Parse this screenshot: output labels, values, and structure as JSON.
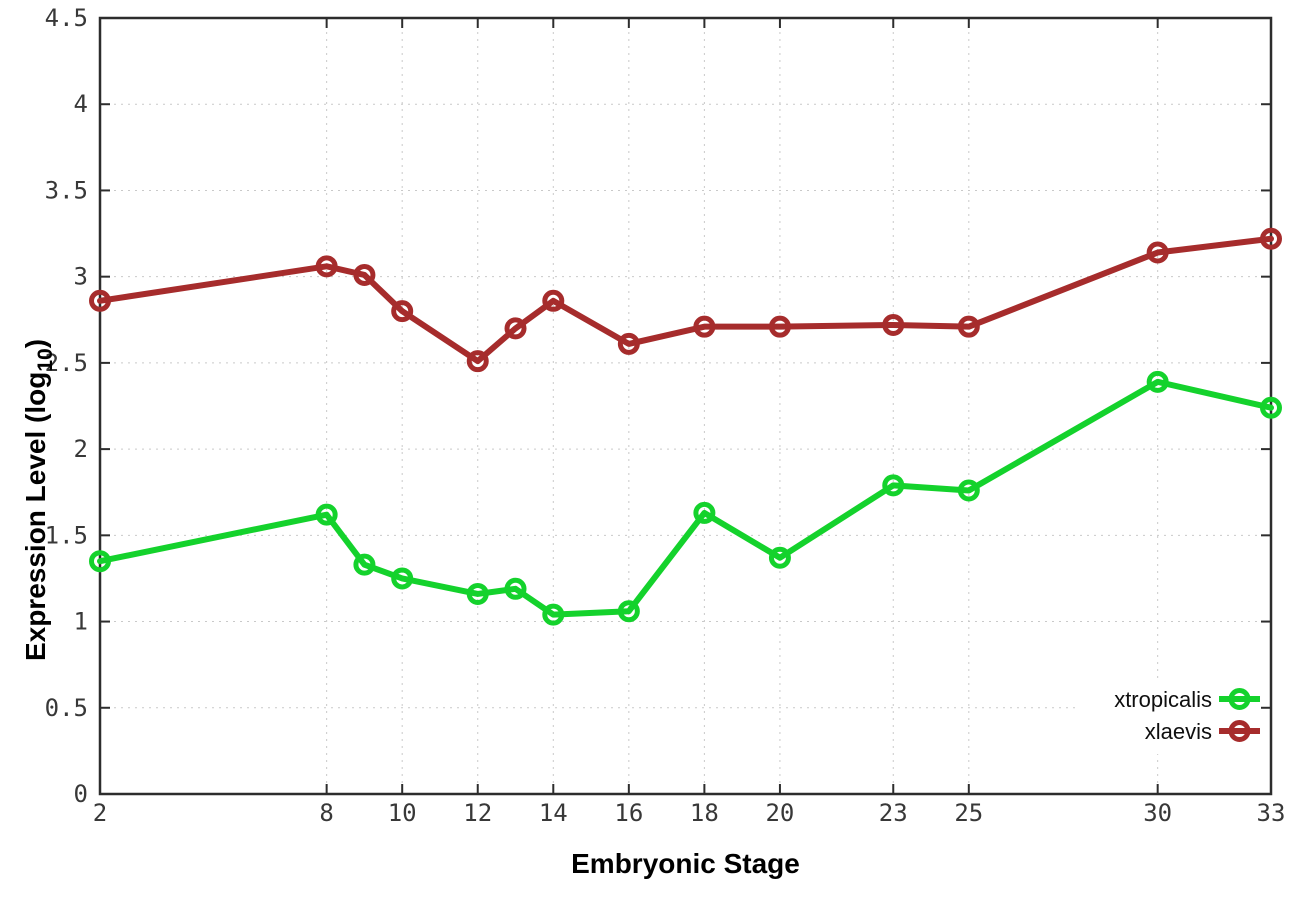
{
  "chart_data": {
    "type": "line",
    "title": "",
    "xlabel": "Embryonic Stage",
    "ylabel": {
      "base": "Expression Level (log",
      "subscript": "10",
      "close": ")"
    },
    "marker_style": "open-circle",
    "grid": "dotted",
    "xlim": [
      2,
      33
    ],
    "ylim": [
      0,
      4.5
    ],
    "x_ticks": [
      2,
      8,
      10,
      12,
      14,
      16,
      18,
      20,
      23,
      25,
      30,
      33
    ],
    "x_tick_labels": [
      "2",
      "8",
      "10",
      "12",
      "14",
      "16",
      "18",
      "20",
      "23",
      "25",
      "30",
      "33"
    ],
    "y_ticks": [
      0,
      0.5,
      1,
      1.5,
      2,
      2.5,
      3,
      3.5,
      4,
      4.5
    ],
    "y_tick_labels": [
      "0",
      "0.5",
      "1",
      "1.5",
      "2",
      "2.5",
      "3",
      "3.5",
      "4",
      "4.5"
    ],
    "x_values": [
      2,
      8,
      9,
      10,
      12,
      13,
      14,
      16,
      18,
      20,
      23,
      25,
      30,
      33
    ],
    "series": [
      {
        "name": "xtropicalis",
        "color": "#14d22c",
        "values": [
          1.35,
          1.62,
          1.33,
          1.25,
          1.16,
          1.19,
          1.04,
          1.06,
          1.63,
          1.37,
          1.79,
          1.76,
          2.39,
          2.24
        ]
      },
      {
        "name": "xlaevis",
        "color": "#a62c2c",
        "values": [
          2.86,
          3.06,
          3.01,
          2.8,
          2.51,
          2.7,
          2.86,
          2.61,
          2.71,
          2.71,
          2.72,
          2.71,
          3.14,
          3.22
        ]
      }
    ],
    "legend": {
      "position": "inside-bottom-right",
      "entries": [
        "xtropicalis",
        "xlaevis"
      ]
    },
    "colors": {
      "axis": "#2d2d2d",
      "grid": "#c9c9c9",
      "tick_text": "#383838",
      "title_text": "#000000",
      "background": "#ffffff"
    }
  }
}
